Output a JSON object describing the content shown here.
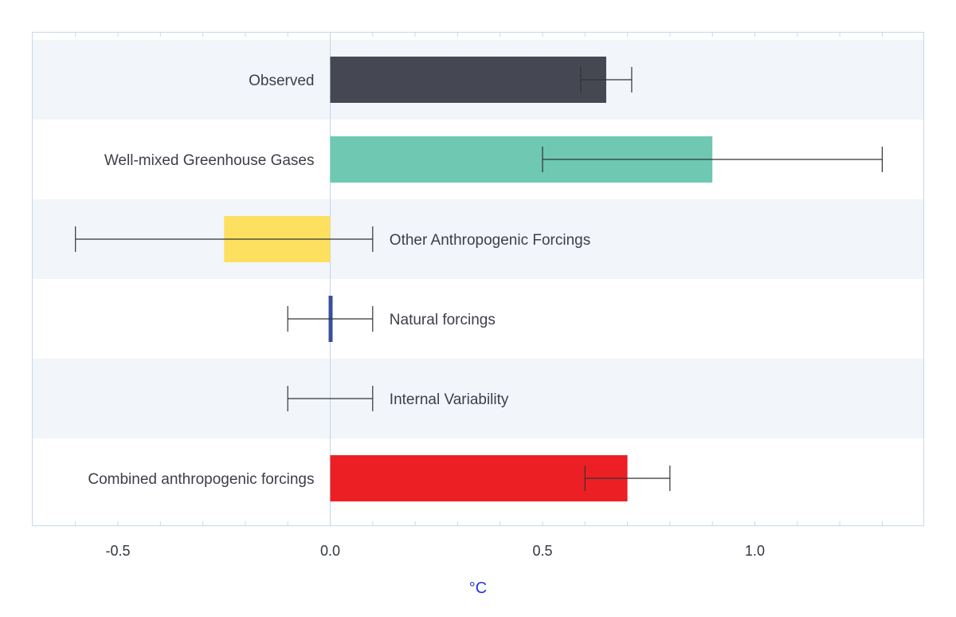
{
  "chart_data": {
    "type": "bar",
    "orientation": "horizontal",
    "title": "",
    "xlabel": "°C",
    "ylabel": "",
    "xlim": [
      -0.7,
      1.4
    ],
    "xticks": [
      -0.5,
      0.0,
      0.5,
      1.0
    ],
    "xtick_labels": [
      "-0.5",
      "0.0",
      "0.5",
      "1.0"
    ],
    "categories": [
      "Observed",
      "Well-mixed Greenhouse Gases",
      "Other Anthropogenic Forcings",
      "Natural forcings",
      "Internal Variability",
      "Combined anthropogenic forcings"
    ],
    "values": [
      0.65,
      0.9,
      -0.25,
      0.0,
      0.0,
      0.7
    ],
    "error_low": [
      0.59,
      0.5,
      -0.6,
      -0.1,
      -0.1,
      0.6
    ],
    "error_high": [
      0.71,
      1.3,
      0.1,
      0.1,
      0.1,
      0.8
    ],
    "colors": [
      "#454752",
      "#6fc8b2",
      "#fde060",
      "#3a4f9e",
      "#ffffff",
      "#ec2024"
    ],
    "row_band_colors": [
      "#f2f5fa",
      "#ffffff"
    ],
    "axis_color": "#c6d8ee",
    "xlabel_color": "#1f35e0",
    "grid": false
  }
}
